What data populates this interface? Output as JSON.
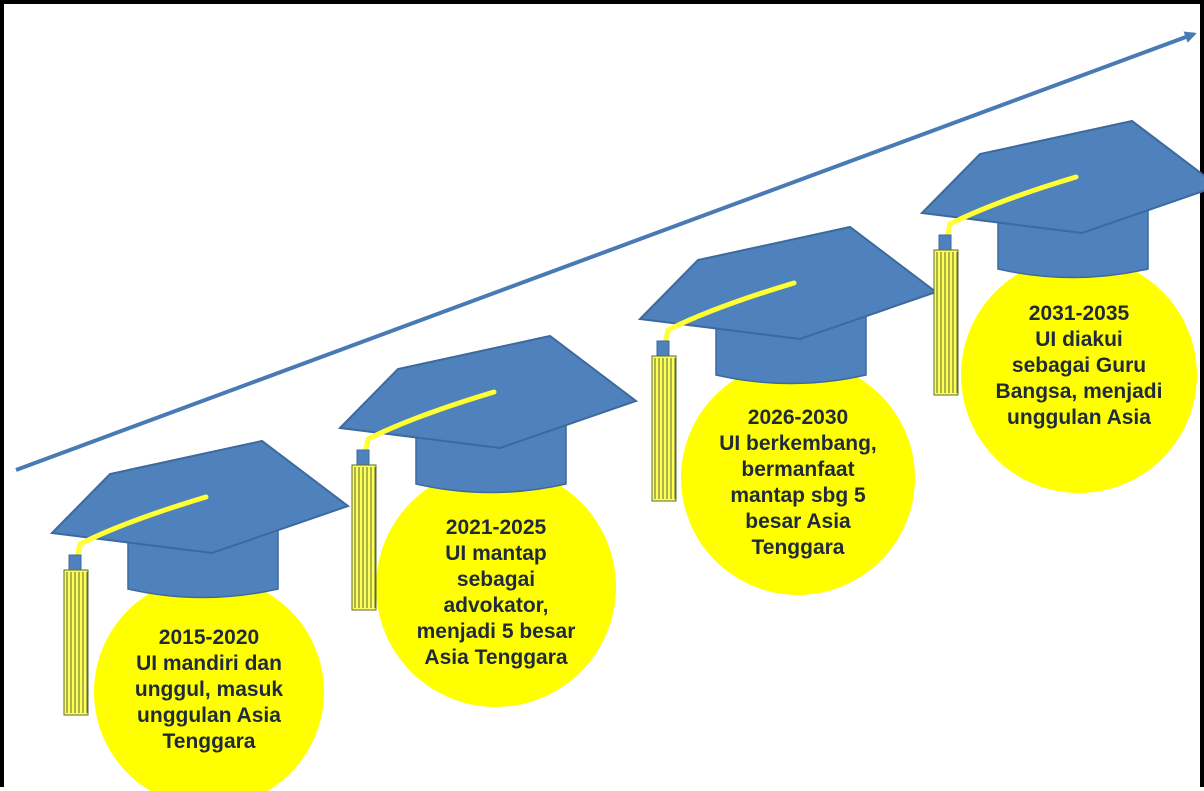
{
  "colors": {
    "arrow": "#4a7ab5",
    "cap": "#4f81bd",
    "cap_outline": "#3d6a9e",
    "circle": "#ffff00",
    "tassel": "#ffff55",
    "tassel_stripe": "#5a6a3a",
    "cord": "#ffff33",
    "text": "#1f2a3a"
  },
  "milestones": [
    {
      "period": "2015-2020",
      "lines": [
        "UI mandiri dan",
        "unggul, masuk",
        "unggulan Asia",
        "Tenggara"
      ]
    },
    {
      "period": "2021-2025",
      "lines": [
        "UI mantap",
        "sebagai",
        "advokator,",
        "menjadi 5 besar",
        "Asia Tenggara"
      ]
    },
    {
      "period": "2026-2030",
      "lines": [
        "UI berkembang,",
        "bermanfaat",
        "mantap sbg 5",
        "besar Asia",
        "Tenggara"
      ]
    },
    {
      "period": "2031-2035",
      "lines": [
        "UI diakui",
        "sebagai Guru",
        "Bangsa, menjadi",
        "unggulan Asia"
      ]
    }
  ]
}
